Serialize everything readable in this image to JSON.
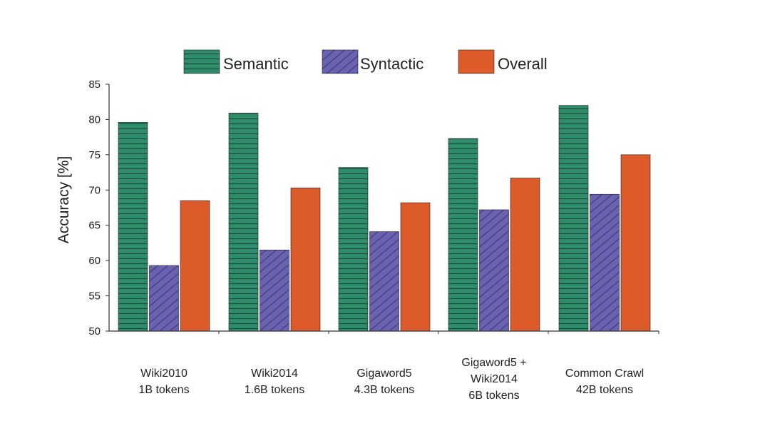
{
  "chart_data": {
    "type": "bar",
    "title": "",
    "xlabel": "",
    "ylabel": "Accuracy [%]",
    "ylim": [
      50,
      85
    ],
    "yticks": [
      50,
      55,
      60,
      65,
      70,
      75,
      80,
      85
    ],
    "grid": false,
    "legend_position": "top-center",
    "categories": [
      [
        "Wiki2010",
        "1B tokens"
      ],
      [
        "Wiki2014",
        "1.6B tokens"
      ],
      [
        "Gigaword5",
        "4.3B tokens"
      ],
      [
        "Gigaword5 +",
        "Wiki2014",
        "6B tokens"
      ],
      [
        "Common Crawl",
        "42B tokens"
      ]
    ],
    "series": [
      {
        "name": "Semantic",
        "color": "#2e8b6b",
        "pattern": "horizontal-lines",
        "values": [
          79.6,
          80.9,
          73.2,
          77.3,
          82.0
        ]
      },
      {
        "name": "Syntactic",
        "color": "#6a62b0",
        "pattern": "diagonal-hatch",
        "values": [
          59.3,
          61.5,
          64.1,
          67.2,
          69.4
        ]
      },
      {
        "name": "Overall",
        "color": "#dd5a2b",
        "pattern": "solid",
        "values": [
          68.5,
          70.3,
          68.2,
          71.7,
          75.0
        ]
      }
    ]
  }
}
